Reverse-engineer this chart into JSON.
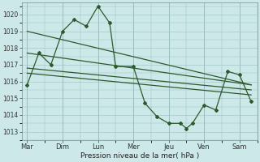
{
  "title": "Pression niveau de la mer( hPa )",
  "bg_color": "#cce8e8",
  "grid_color": "#9bbfbf",
  "line_color": "#2d5a2d",
  "ylim": [
    1012.5,
    1020.7
  ],
  "yticks": [
    1013,
    1014,
    1015,
    1016,
    1017,
    1018,
    1019,
    1020
  ],
  "days": [
    "Mar",
    "Dim",
    "Lun",
    "Mer",
    "Jeu",
    "Ven",
    "Sam"
  ],
  "day_x": [
    0,
    1,
    2,
    3,
    4,
    5,
    6
  ],
  "jagged_line": {
    "x": [
      0.0,
      0.33,
      0.67,
      1.0,
      1.33,
      1.67,
      2.0,
      2.33,
      2.5,
      3.0,
      3.33,
      3.67,
      4.0,
      4.33,
      4.5,
      4.67,
      5.0,
      5.33,
      5.67,
      6.0,
      6.33
    ],
    "y": [
      1015.8,
      1017.7,
      1017.0,
      1019.0,
      1019.7,
      1019.3,
      1020.5,
      1019.5,
      1016.9,
      1016.9,
      1014.7,
      1013.9,
      1013.5,
      1013.5,
      1013.2,
      1013.5,
      1014.6,
      1014.3,
      1016.6,
      1016.4,
      1014.8
    ]
  },
  "diagonal1": {
    "x": [
      0.0,
      6.33
    ],
    "y": [
      1017.7,
      1015.8
    ]
  },
  "diagonal2": {
    "x": [
      0.0,
      6.33
    ],
    "y": [
      1016.8,
      1015.5
    ]
  },
  "diagonal3": {
    "x": [
      0.0,
      6.33
    ],
    "y": [
      1016.5,
      1015.2
    ]
  },
  "diagonal4": {
    "x": [
      0.0,
      6.33
    ],
    "y": [
      1019.0,
      1015.8
    ]
  },
  "short_line": {
    "x": [
      0.0,
      2.0,
      2.33
    ],
    "y": [
      1016.8,
      1016.9,
      1016.9
    ]
  }
}
